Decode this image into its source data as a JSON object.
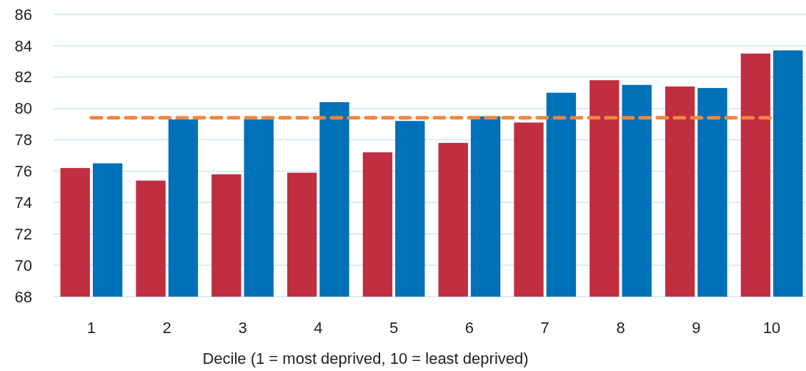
{
  "chart_data": {
    "type": "bar",
    "xlabel": "Decile (1 = most deprived, 10 = least deprived)",
    "categories": [
      "1",
      "2",
      "3",
      "4",
      "5",
      "6",
      "7",
      "8",
      "9",
      "10"
    ],
    "series": [
      {
        "color": "#c02e42",
        "values": [
          76.2,
          75.4,
          75.8,
          75.9,
          77.2,
          77.8,
          79.1,
          81.8,
          81.4,
          83.5
        ]
      },
      {
        "color": "#0070b8",
        "values": [
          76.5,
          79.3,
          79.3,
          80.4,
          79.2,
          79.5,
          81.0,
          81.5,
          81.3,
          83.7
        ]
      }
    ],
    "ylim": [
      68,
      86
    ],
    "yticks": [
      68,
      70,
      72,
      74,
      76,
      78,
      80,
      82,
      84,
      86
    ],
    "grid": "y",
    "ref_lines": [
      {
        "axis": "y",
        "value": 79.4,
        "color": "#f0883e",
        "line_style": "dashed"
      }
    ]
  }
}
